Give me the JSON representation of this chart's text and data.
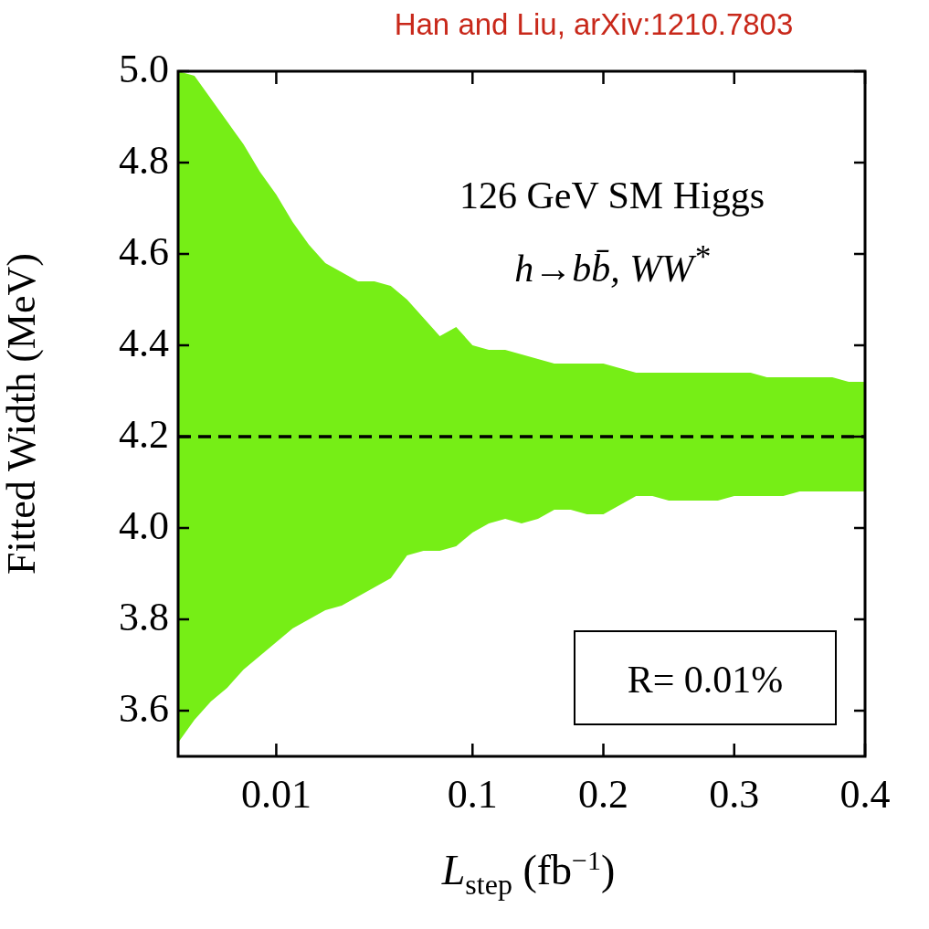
{
  "chart_data": {
    "type": "line",
    "line_style": "dashed",
    "xlabel": "L$_{step}$ (fb$^{−1}$)",
    "ylabel": "Fitted Width (MeV)",
    "categories": [
      null,
      null,
      null,
      null,
      null,
      null,
      "0.01",
      null,
      null,
      null,
      null,
      null,
      null,
      null,
      null,
      null,
      null,
      null,
      "0.1",
      null,
      null,
      null,
      null,
      null,
      null,
      null,
      "0.2",
      null,
      null,
      null,
      null,
      null,
      null,
      null,
      "0.3",
      null,
      null,
      null,
      null,
      null,
      null,
      null,
      "0.4"
    ],
    "series": [
      {
        "color": "#000000",
        "values": [
          4.2,
          4.2,
          4.2,
          4.2,
          4.2,
          4.2,
          4.2,
          4.2,
          4.2,
          4.2,
          4.2,
          4.2,
          4.2,
          4.2,
          4.2,
          4.2,
          4.2,
          4.2,
          4.2,
          4.2,
          4.2,
          4.2,
          4.2,
          4.2,
          4.2,
          4.2,
          4.2,
          4.2,
          4.2,
          4.2,
          4.2,
          4.2,
          4.2,
          4.2,
          4.2,
          4.2,
          4.2,
          4.2,
          4.2,
          4.2,
          4.2,
          4.2,
          4.2
        ],
        "upper": [
          5.0,
          4.99,
          4.94,
          4.89,
          4.84,
          4.78,
          4.73,
          4.67,
          4.62,
          4.58,
          4.56,
          4.54,
          4.54,
          4.53,
          4.5,
          4.46,
          4.42,
          4.44,
          4.4,
          4.39,
          4.39,
          4.38,
          4.37,
          4.36,
          4.36,
          4.36,
          4.36,
          4.35,
          4.34,
          4.34,
          4.34,
          4.34,
          4.34,
          4.34,
          4.34,
          4.34,
          4.33,
          4.33,
          4.33,
          4.33,
          4.33,
          4.32,
          4.32
        ],
        "lower": [
          3.53,
          3.58,
          3.62,
          3.65,
          3.69,
          3.72,
          3.75,
          3.78,
          3.8,
          3.82,
          3.83,
          3.85,
          3.87,
          3.89,
          3.94,
          3.95,
          3.95,
          3.96,
          3.99,
          4.01,
          4.02,
          4.01,
          4.02,
          4.04,
          4.04,
          4.03,
          4.03,
          4.05,
          4.07,
          4.07,
          4.06,
          4.06,
          4.06,
          4.06,
          4.07,
          4.07,
          4.07,
          4.07,
          4.08,
          4.08,
          4.08,
          4.08,
          4.08
        ]
      }
    ],
    "ylim": [
      3.5,
      5.0
    ],
    "yticks": [
      {
        "value": 3.6,
        "label": "3.6"
      },
      {
        "value": 3.8,
        "label": "3.8"
      },
      {
        "value": 4.0,
        "label": "4.0"
      },
      {
        "value": 4.2,
        "label": "4.2"
      },
      {
        "value": 4.4,
        "label": "4.4"
      },
      {
        "value": 4.6,
        "label": "4.6"
      },
      {
        "value": 4.8,
        "label": "4.8"
      },
      {
        "value": 5.0,
        "label": "5.0"
      }
    ],
    "annotations": [
      "Han and Liu, arXiv:1210.7803",
      "126 GeV SM Higgs",
      "h→bb̄, WW$^{*}$",
      "R=  0.01%"
    ]
  }
}
